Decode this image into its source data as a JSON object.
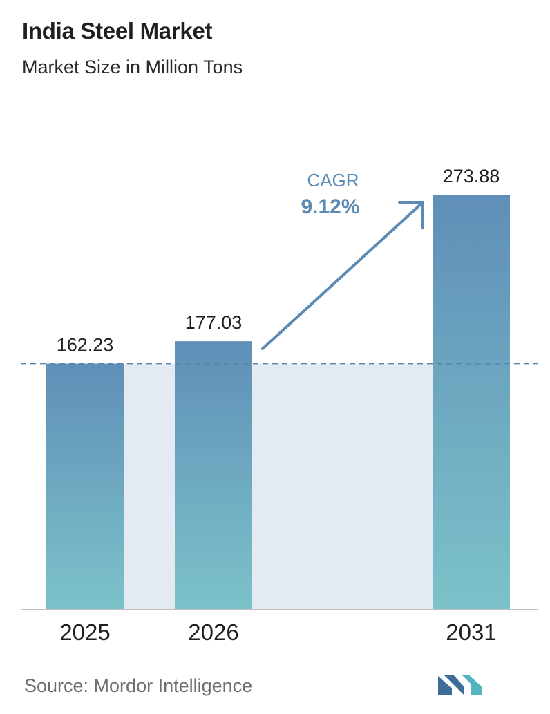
{
  "header": {
    "title": "India Steel Market",
    "subtitle": "Market Size in Million Tons"
  },
  "chart_data": {
    "type": "bar",
    "categories": [
      "2025",
      "2026",
      "2031"
    ],
    "values": [
      162.23,
      177.03,
      273.88
    ],
    "value_labels": [
      "162.23",
      "177.03",
      "273.88"
    ],
    "title": "India Steel Market",
    "subtitle": "Market Size in Million Tons",
    "xlabel": "",
    "ylabel": "",
    "ylim": [
      0,
      273.88
    ],
    "grid": false,
    "legend": "none",
    "annotation": {
      "label": "CAGR",
      "value": "9.12%"
    },
    "reference_line": {
      "value": 162.23,
      "style": "dashed"
    }
  },
  "colors": {
    "bar_top": "#5f8fb8",
    "bar_bottom": "#7cc2c9",
    "shade": "#e3eaf2",
    "arrow": "#5b8ab5",
    "reference_line": "#5a83a6",
    "baseline": "#bfbfbf",
    "logo_left": "#3e6d9a",
    "logo_right": "#52b5c0"
  },
  "footer": {
    "source": "Source:  Mordor Intelligence",
    "logo_icon": "mordor-intelligence-logo-icon"
  }
}
